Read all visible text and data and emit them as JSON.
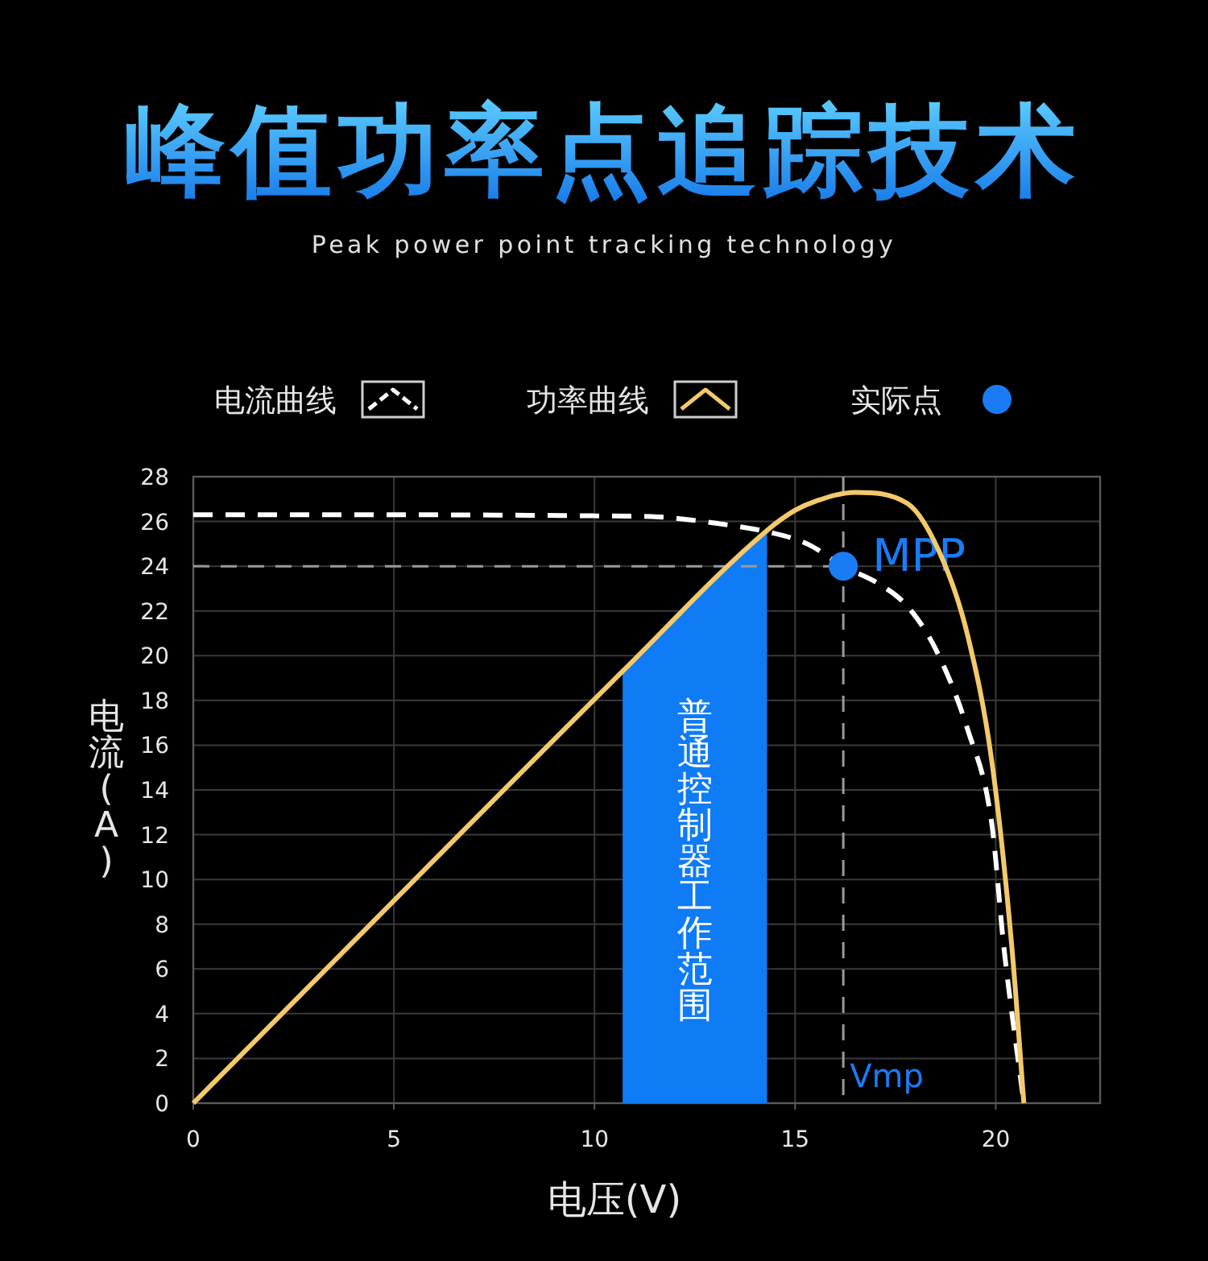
{
  "chart_data": {
    "type": "line",
    "title": "峰值功率点追踪技术",
    "subtitle": "Peak power point tracking technology",
    "xlabel": "电压(V)",
    "ylabel": "电流(A)",
    "xlim": [
      0,
      22.6
    ],
    "ylim": [
      0,
      28
    ],
    "xticks": [
      0,
      5,
      10,
      15,
      20
    ],
    "yticks": [
      0,
      2,
      4,
      6,
      8,
      10,
      12,
      14,
      16,
      18,
      20,
      22,
      24,
      26,
      28
    ],
    "grid": true,
    "legend": "top",
    "series": [
      {
        "name": "电流曲线",
        "type": "line",
        "color": "#ffffff",
        "line_style": "dashed",
        "x": [
          0,
          5,
          10,
          11.6,
          13.1,
          14.4,
          15.3,
          16.2,
          17.1,
          17.8,
          18.5,
          19.3,
          19.9,
          20.2,
          20.7
        ],
        "values": [
          26.3,
          26.3,
          26.25,
          26.2,
          25.9,
          25.5,
          25.0,
          24.0,
          23.2,
          22.2,
          20.3,
          16.7,
          12.5,
          7.0,
          0
        ]
      },
      {
        "name": "功率曲线",
        "type": "line",
        "color": "#f3c96b",
        "line_style": "solid",
        "x": [
          0,
          10.7,
          14.3,
          15.0,
          15.5,
          16.5,
          17.8,
          18.7,
          19.3,
          19.9,
          20.4,
          20.7
        ],
        "values": [
          0,
          19.3,
          25.6,
          26.5,
          26.9,
          27.3,
          26.8,
          24.2,
          20.9,
          15.3,
          7.0,
          0
        ]
      },
      {
        "name": "实际点",
        "type": "scatter",
        "color": "#1a7cf5",
        "marker": "circle",
        "x": [
          16.2
        ],
        "values": [
          24
        ]
      }
    ],
    "ref_lines": [
      {
        "axis": "y",
        "value": 24,
        "color": "#9a9a9a",
        "line_style": "dashed"
      },
      {
        "axis": "x",
        "value": 16.2,
        "label": "Vmp",
        "color": "#9a9a9a",
        "line_style": "dashed"
      }
    ],
    "bands": [
      {
        "axis": "x",
        "from": 10.7,
        "to": 14.3,
        "label": "普通控制器工作范围",
        "color": "#0f7bf5"
      }
    ],
    "annotations": [
      {
        "text": "MPP",
        "x": 16.2,
        "y": 24
      }
    ]
  }
}
